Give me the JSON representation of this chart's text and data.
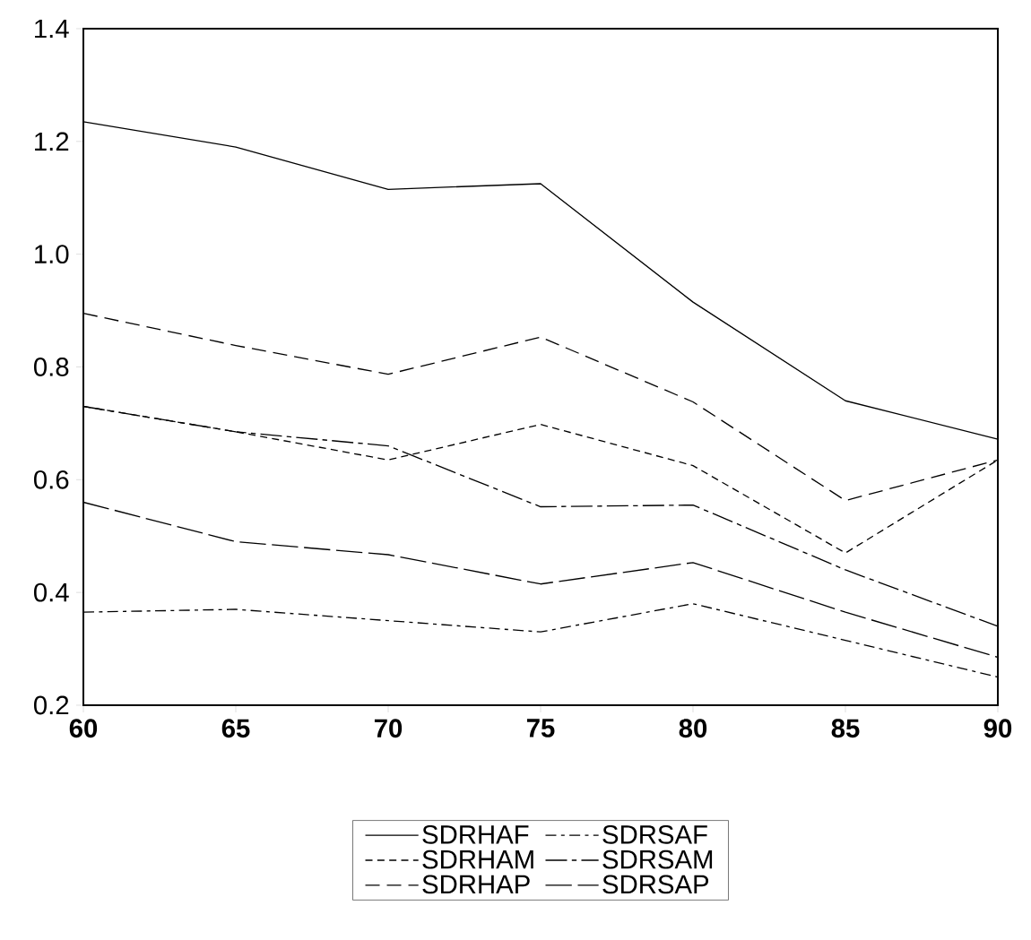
{
  "chart_data": {
    "type": "line",
    "x": [
      60,
      65,
      70,
      75,
      80,
      85,
      90
    ],
    "xlim": [
      60,
      90
    ],
    "xticks": [
      60,
      65,
      70,
      75,
      80,
      85,
      90
    ],
    "ylim": [
      0.2,
      1.4
    ],
    "yticks": [
      {
        "value": 0.2,
        "label": "0.2"
      },
      {
        "value": 0.4,
        "label": "0.4"
      },
      {
        "value": 0.6,
        "label": "0.6"
      },
      {
        "value": 0.8,
        "label": "0.8"
      },
      {
        "value": 1.0,
        "label": "1.0"
      },
      {
        "value": 1.2,
        "label": "1.2"
      },
      {
        "value": 1.4,
        "label": "1.4"
      }
    ],
    "grid": false,
    "legend": "bottom",
    "marker": "none",
    "series": [
      {
        "name": "SDRHAF",
        "color": "#000000",
        "line_style": "solid",
        "values": [
          1.235,
          1.19,
          1.115,
          1.125,
          0.915,
          0.74,
          0.672
        ]
      },
      {
        "name": "SDRHAM",
        "color": "#000000",
        "line_style": "dashed",
        "values": [
          0.73,
          0.685,
          0.635,
          0.698,
          0.625,
          0.47,
          0.635
        ]
      },
      {
        "name": "SDRHAP",
        "color": "#000000",
        "line_style": "longdashed",
        "values": [
          0.895,
          0.838,
          0.787,
          0.853,
          0.738,
          0.563,
          0.635
        ]
      },
      {
        "name": "SDRSAF",
        "color": "#000000",
        "line_style": "dashdotted",
        "values": [
          0.365,
          0.37,
          0.35,
          0.33,
          0.38,
          0.315,
          0.25
        ]
      },
      {
        "name": "SDRSAM",
        "color": "#000000",
        "line_style": "longdashdotted",
        "values": [
          0.73,
          0.685,
          0.66,
          0.552,
          0.555,
          0.44,
          0.34
        ]
      },
      {
        "name": "SDRSAP",
        "color": "#000000",
        "line_style": "verylongdashed",
        "values": [
          0.56,
          0.49,
          0.467,
          0.415,
          0.453,
          0.365,
          0.285
        ]
      }
    ]
  }
}
